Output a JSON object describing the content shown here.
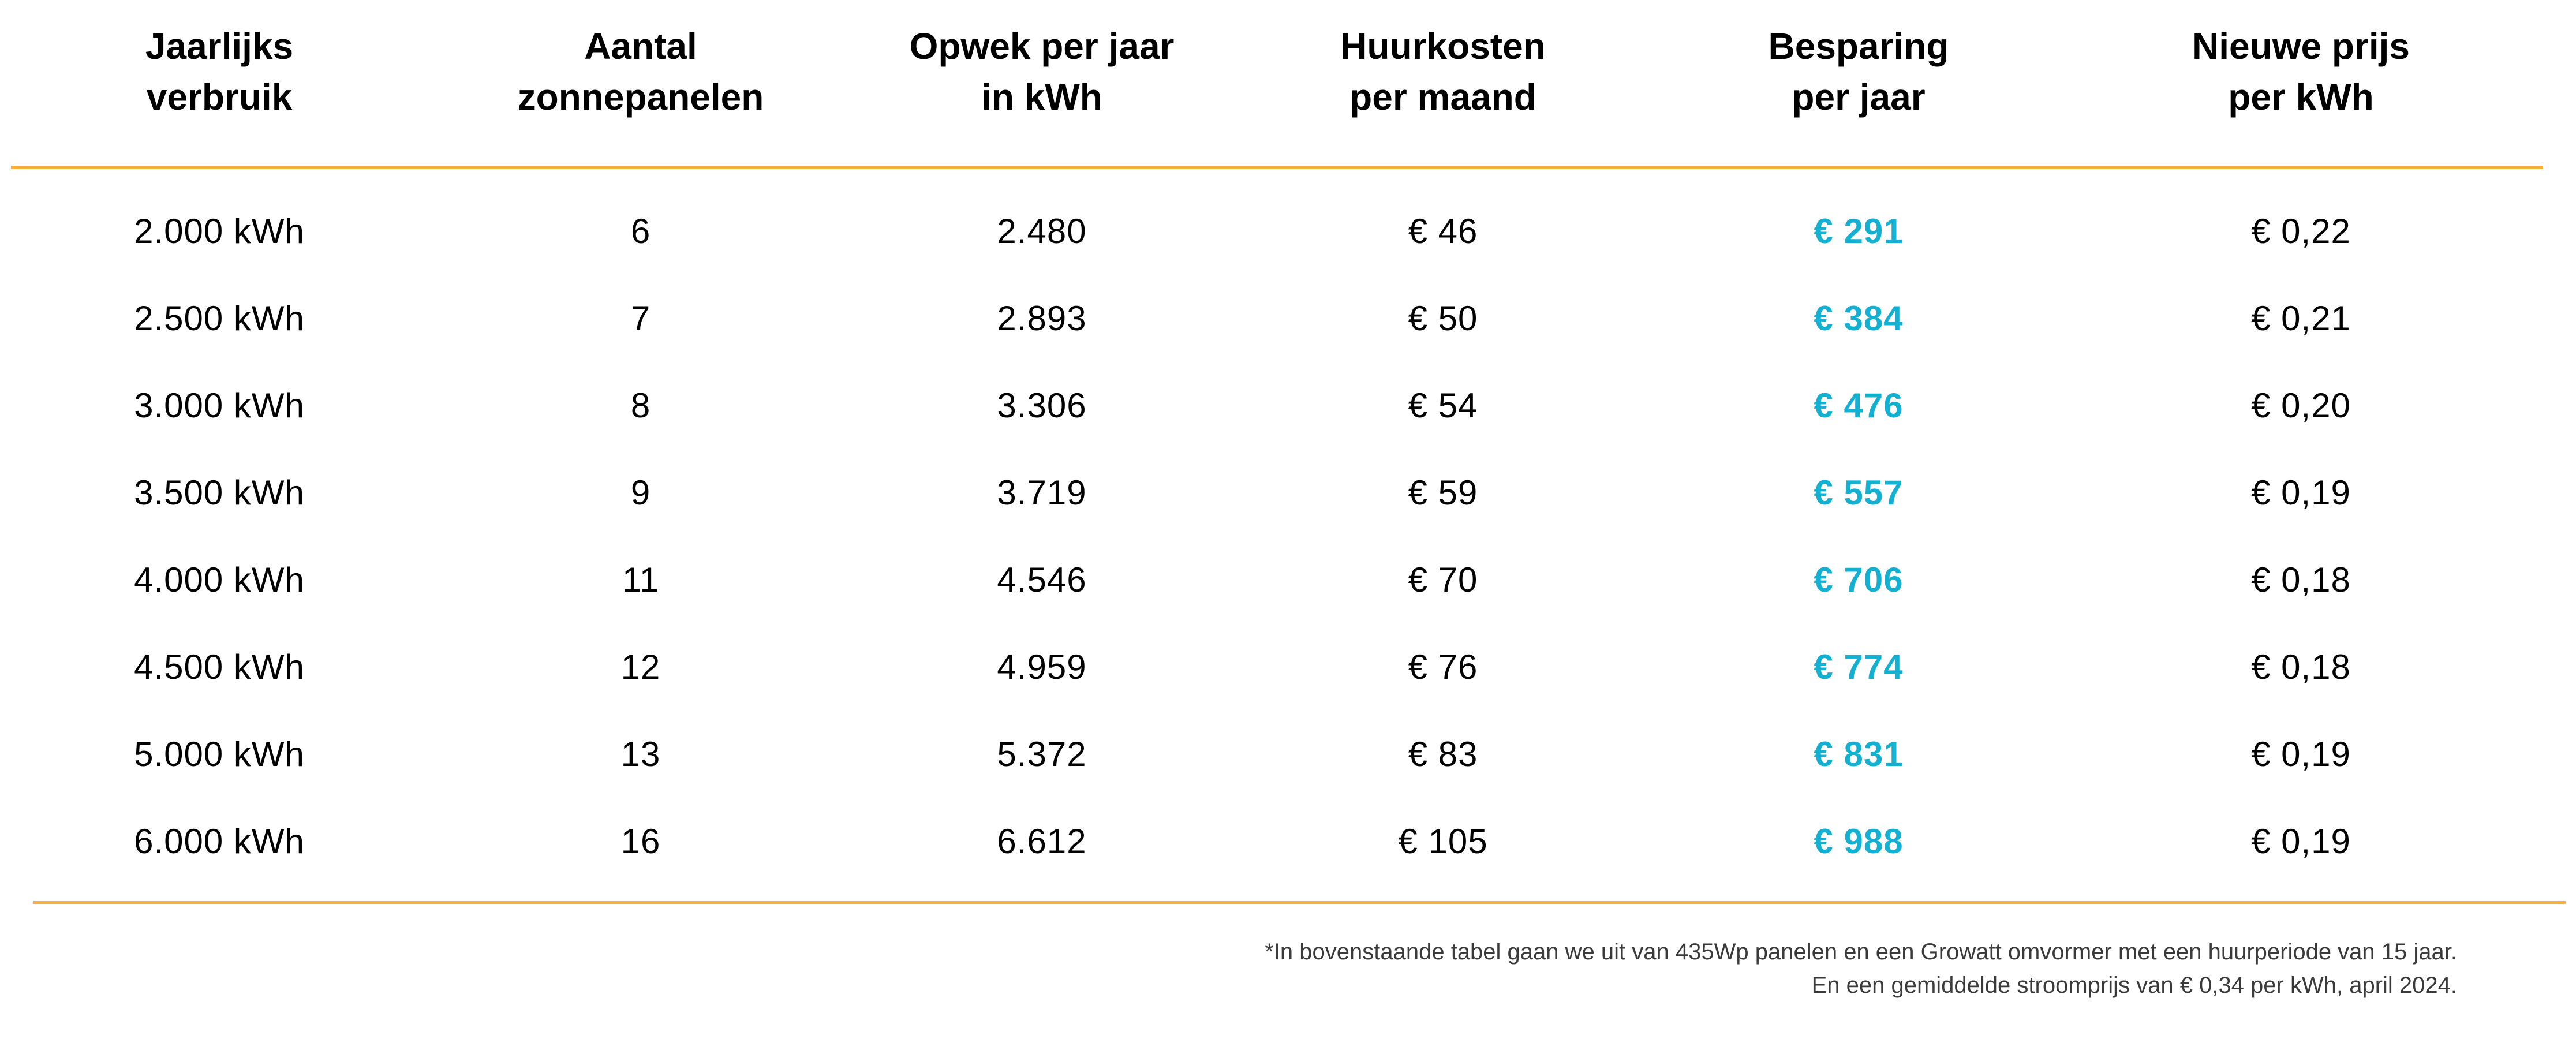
{
  "colors": {
    "accent_orange": "#f9ae3b",
    "accent_cyan": "#14b0d2",
    "text": "#000000",
    "footnote_text": "#3a3a3a"
  },
  "table": {
    "columns": [
      {
        "line1": "Jaarlijks",
        "line2": "verbruik"
      },
      {
        "line1": "Aantal",
        "line2": "zonnepanelen"
      },
      {
        "line1": "Opwek per jaar",
        "line2": "in kWh"
      },
      {
        "line1": "Huurkosten",
        "line2": "per maand"
      },
      {
        "line1": "Besparing",
        "line2": "per jaar"
      },
      {
        "line1": "Nieuwe prijs",
        "line2": "per kWh"
      }
    ],
    "column_keys": [
      "jaarlijks-verbruik",
      "aantal-zonnepanelen",
      "opwek-per-jaar-in-kwh",
      "huurkosten-per-maand",
      "besparing-per-jaar",
      "nieuwe-prijs-per-kwh"
    ]
  },
  "chart_data": {
    "type": "table",
    "title": "",
    "columns": [
      "Jaarlijks verbruik",
      "Aantal zonnepanelen",
      "Opwek per jaar in kWh",
      "Huurkosten per maand",
      "Besparing per jaar",
      "Nieuwe prijs per kWh"
    ],
    "rows": [
      [
        "2.000 kWh",
        "6",
        "2.480",
        "€ 46",
        "€ 291",
        "€ 0,22"
      ],
      [
        "2.500 kWh",
        "7",
        "2.893",
        "€ 50",
        "€ 384",
        "€ 0,21"
      ],
      [
        "3.000 kWh",
        "8",
        "3.306",
        "€ 54",
        "€ 476",
        "€ 0,20"
      ],
      [
        "3.500 kWh",
        "9",
        "3.719",
        "€ 59",
        "€ 557",
        "€ 0,19"
      ],
      [
        "4.000 kWh",
        "11",
        "4.546",
        "€ 70",
        "€ 706",
        "€ 0,18"
      ],
      [
        "4.500 kWh",
        "12",
        "4.959",
        "€ 76",
        "€ 774",
        "€ 0,18"
      ],
      [
        "5.000 kWh",
        "13",
        "5.372",
        "€ 83",
        "€ 831",
        "€ 0,19"
      ],
      [
        "6.000 kWh",
        "16",
        "6.612",
        "€ 105",
        "€ 988",
        "€ 0,19"
      ]
    ]
  },
  "footnote": {
    "line1": "*In bovenstaande tabel gaan we uit van 435Wp panelen en een Growatt omvormer met een huurperiode van 15 jaar.",
    "line2": "En een gemiddelde stroomprijs van € 0,34 per kWh, april 2024."
  }
}
